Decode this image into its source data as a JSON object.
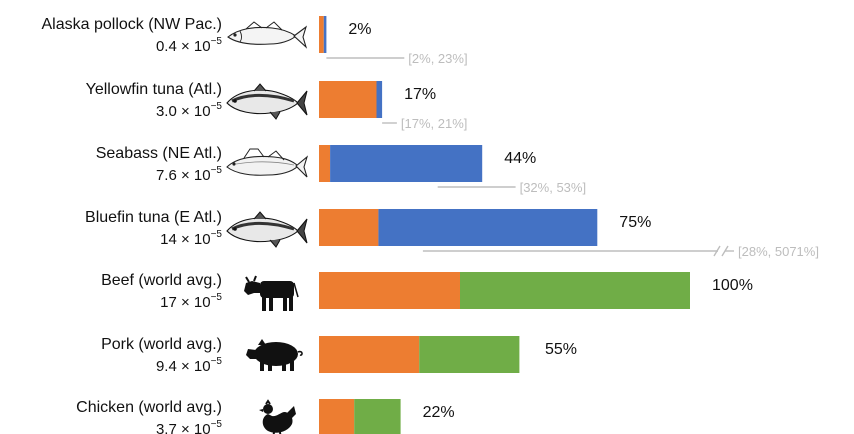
{
  "colors": {
    "base": "#ED7D31",
    "fish_extra": "#4472C4",
    "land_extra": "#70AD47",
    "ci_line": "#bdbdbd",
    "icon": "#111111"
  },
  "chart_data": {
    "type": "bar",
    "orientation": "horizontal",
    "stacked": true,
    "xlim": [
      0,
      100
    ],
    "grid": false,
    "legend": "none",
    "rows": [
      {
        "name": "Alaska pollock (NW Pac.)",
        "value_mant": "0.4",
        "value_exp": "−5",
        "icon": "fish-icon",
        "segments": [
          1.3,
          0.7
        ],
        "segment_colors": [
          "base",
          "fish_extra"
        ],
        "total": 2,
        "label": "2%",
        "ci": "[2%, 23%]",
        "ci_range": [
          2,
          23
        ],
        "ci_break": false
      },
      {
        "name": "Yellowfin tuna (Atl.)",
        "value_mant": "3.0",
        "value_exp": "−5",
        "icon": "tuna-icon",
        "segments": [
          15.5,
          1.5
        ],
        "segment_colors": [
          "base",
          "fish_extra"
        ],
        "total": 17,
        "label": "17%",
        "ci": "[17%, 21%]",
        "ci_range": [
          17,
          21
        ],
        "ci_break": false
      },
      {
        "name": "Seabass (NE Atl.)",
        "value_mant": "7.6",
        "value_exp": "−5",
        "icon": "seabass-icon",
        "segments": [
          3,
          41
        ],
        "segment_colors": [
          "base",
          "fish_extra"
        ],
        "total": 44,
        "label": "44%",
        "ci": "[32%, 53%]",
        "ci_range": [
          32,
          53
        ],
        "ci_break": false
      },
      {
        "name": "Bluefin tuna (E Atl.)",
        "value_mant": "14",
        "value_exp": "−5",
        "icon": "tuna-icon",
        "segments": [
          16,
          59
        ],
        "segment_colors": [
          "base",
          "fish_extra"
        ],
        "total": 75,
        "label": "75%",
        "ci": "[28%, 5071%]",
        "ci_range": [
          28,
          5071
        ],
        "ci_break": true
      },
      {
        "name": "Beef (world avg.)",
        "value_mant": "17",
        "value_exp": "−5",
        "icon": "cow-icon",
        "segments": [
          38,
          62
        ],
        "segment_colors": [
          "base",
          "land_extra"
        ],
        "total": 100,
        "label": "100%",
        "ci": "",
        "ci_range": null,
        "ci_break": false
      },
      {
        "name": "Pork (world avg.)",
        "value_mant": "9.4",
        "value_exp": "−5",
        "icon": "pig-icon",
        "segments": [
          27,
          27
        ],
        "segment_colors": [
          "base",
          "land_extra"
        ],
        "total": 55,
        "label": "55%",
        "ci": "",
        "ci_range": null,
        "ci_break": false
      },
      {
        "name": "Chicken (world avg.)",
        "value_mant": "3.7",
        "value_exp": "−5",
        "icon": "chicken-icon",
        "segments": [
          9.5,
          12.5
        ],
        "segment_colors": [
          "base",
          "land_extra"
        ],
        "total": 22,
        "label": "22%",
        "ci": "",
        "ci_range": null,
        "ci_break": false
      }
    ]
  }
}
